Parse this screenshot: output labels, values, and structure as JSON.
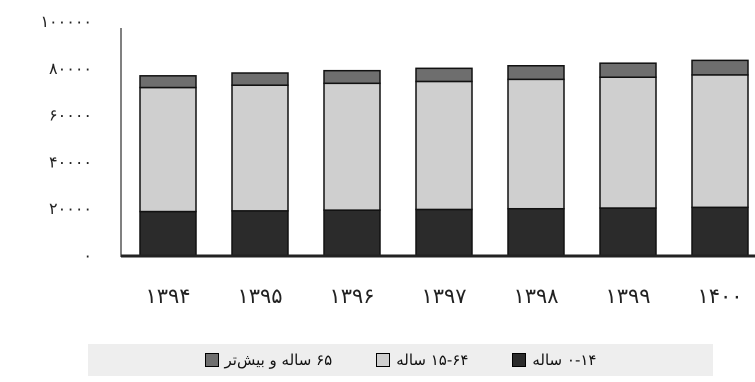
{
  "chart_data": {
    "type": "bar",
    "stacked": true,
    "title": "",
    "xlabel": "",
    "ylabel": "",
    "categories": [
      "۱۳۹۴",
      "۱۳۹۵",
      "۱۳۹۶",
      "۱۳۹۷",
      "۱۳۹۸",
      "۱۳۹۹",
      "۱۴۰۰"
    ],
    "yticks": [
      "۰",
      "۲۰۰۰۰",
      "۴۰۰۰۰",
      "۶۰۰۰۰",
      "۸۰۰۰۰",
      "۱۰۰۰۰۰"
    ],
    "ylim": [
      0,
      100000
    ],
    "grid": false,
    "legend_position": "bottom",
    "series": [
      {
        "name": "۰-۱۴ ساله",
        "color": "#2b2b2b",
        "values": [
          19000,
          19300,
          19600,
          19900,
          20200,
          20500,
          20800
        ]
      },
      {
        "name": "۱۵-۶۴ ساله",
        "color": "#cfcfcf",
        "values": [
          53000,
          53700,
          54200,
          54700,
          55300,
          55900,
          56600
        ]
      },
      {
        "name": "۶۵ ساله و بیش‌تر",
        "color": "#6e6e6e",
        "values": [
          5000,
          5200,
          5400,
          5600,
          5800,
          6000,
          6200
        ]
      }
    ]
  },
  "legend": [
    {
      "label": "۰-۱۴ ساله",
      "color": "#2b2b2b"
    },
    {
      "label": "۱۵-۶۴ ساله",
      "color": "#cfcfcf"
    },
    {
      "label": "۶۵ ساله و بیش‌تر",
      "color": "#6e6e6e"
    }
  ]
}
